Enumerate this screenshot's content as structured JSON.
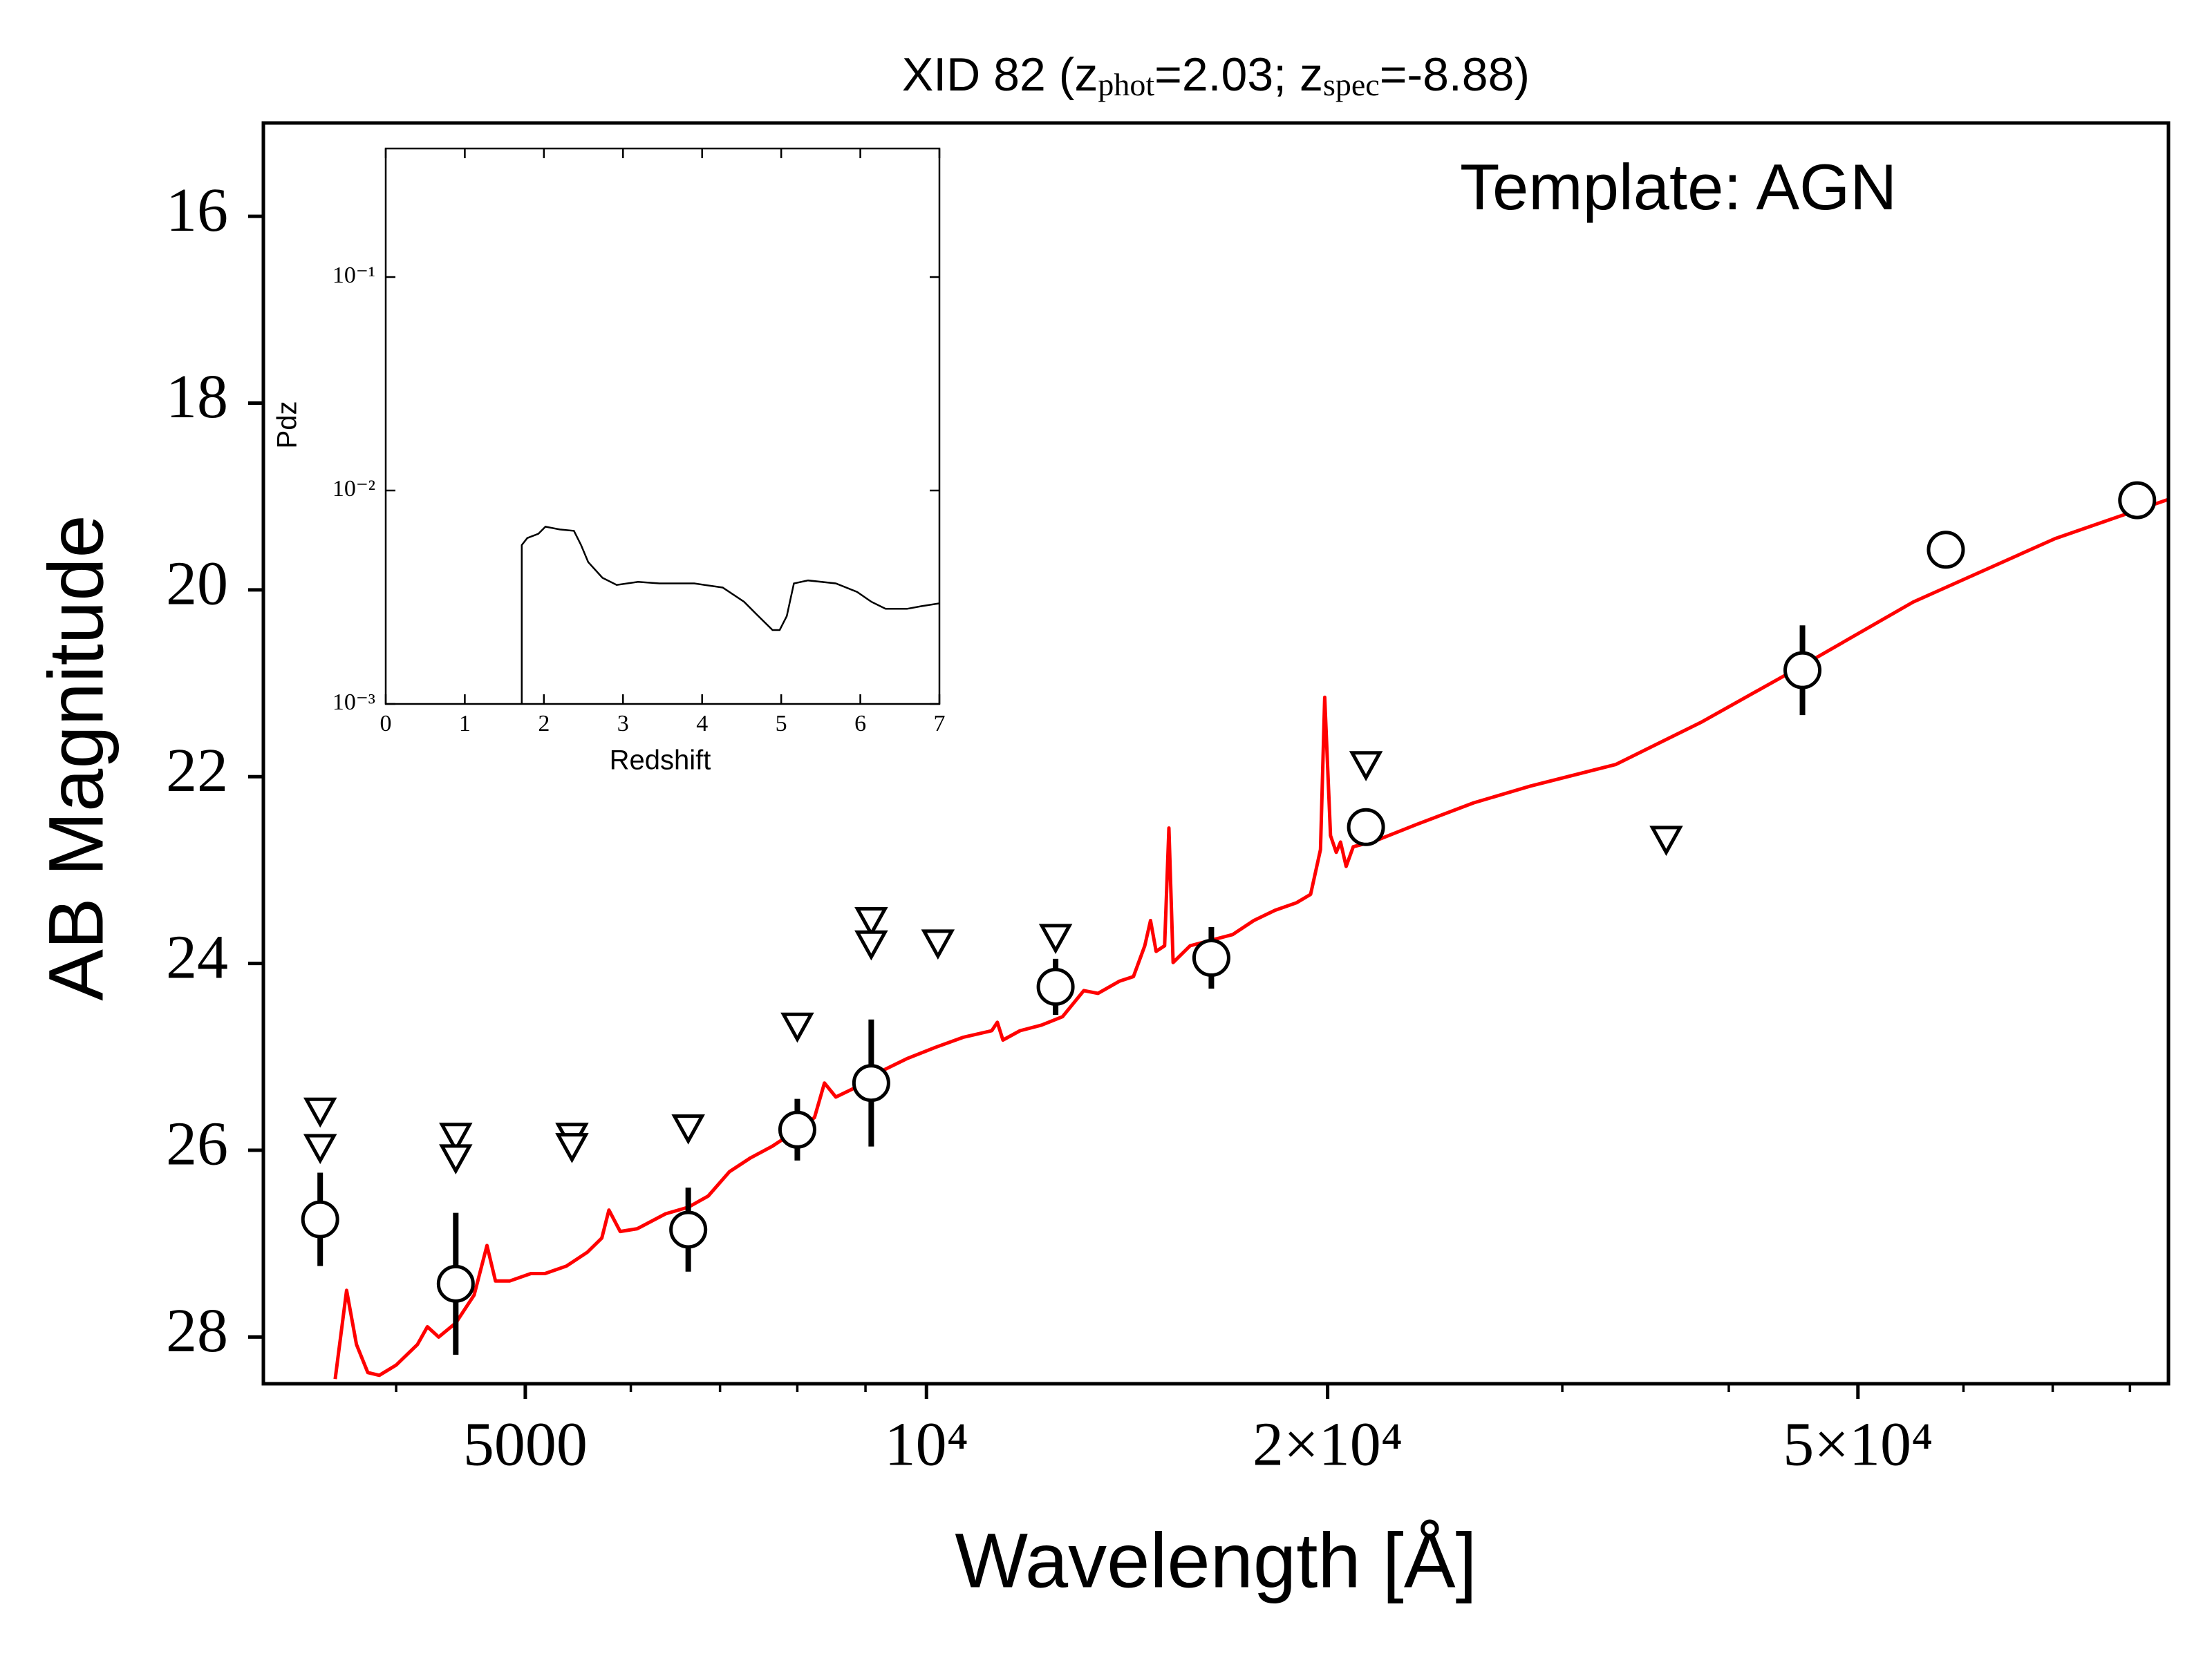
{
  "chart_data": [
    {
      "type": "scatter",
      "title": [
        "XID 82 (z",
        "phot",
        "=2.03; z",
        "spec",
        "=-8.88)"
      ],
      "annotation": "Template: AGN",
      "xlabel": "Wavelength [Å]",
      "ylabel": "AB Magnitude",
      "xlog": true,
      "xlim": [
        3180,
        85500
      ],
      "xticks": [
        5000,
        {
          "value": 10000,
          "label": "10⁴"
        },
        {
          "value": 20000,
          "label": "2×10⁴"
        },
        {
          "value": 50000,
          "label": "5×10⁴"
        }
      ],
      "xminorticks": [
        4000,
        6000,
        7000,
        8000,
        9000,
        30000,
        40000,
        60000,
        70000,
        80000
      ],
      "ylim": [
        28.5,
        15
      ],
      "yticks": [
        16,
        18,
        20,
        22,
        24,
        26,
        28
      ],
      "series": [
        {
          "marker": "line",
          "color": "#ff0000",
          "x": [
            3600,
            3672,
            3735,
            3809,
            3885,
            4000,
            4150,
            4222,
            4305,
            4434,
            4577,
            4680,
            4749,
            4866,
            5049,
            5173,
            5368,
            5568,
            5707,
            5777,
            5891,
            6067,
            6372,
            6626,
            6858,
            7114,
            7381,
            7656,
            7943,
            8241,
            8384,
            8551,
            8870,
            9201,
            9663,
            10148,
            10657,
            11194,
            11303,
            11413,
            11755,
            12196,
            12650,
            13124,
            13450,
            13953,
            14300,
            14583,
            14727,
            14870,
            15090,
            15202,
            15314,
            15771,
            16360,
            16973,
            17605,
            18265,
            18950,
            19420,
            19756,
            19900,
            20100,
            20300,
            20450,
            20650,
            20905,
            21690,
            23340,
            25740,
            28400,
            32890,
            38100,
            45430,
            55000,
            70300,
            85500
          ],
          "values": [
            28.45,
            27.5,
            28.08,
            28.38,
            28.41,
            28.3,
            28.08,
            27.89,
            28.0,
            27.85,
            27.55,
            27.02,
            27.4,
            27.4,
            27.32,
            27.32,
            27.24,
            27.09,
            26.94,
            26.64,
            26.87,
            26.84,
            26.68,
            26.61,
            26.49,
            26.23,
            26.08,
            25.96,
            25.81,
            25.65,
            25.28,
            25.43,
            25.32,
            25.17,
            25.02,
            24.9,
            24.79,
            24.72,
            24.63,
            24.82,
            24.72,
            24.66,
            24.57,
            24.29,
            24.32,
            24.19,
            24.14,
            23.81,
            23.54,
            23.87,
            23.81,
            22.55,
            23.99,
            23.81,
            23.75,
            23.69,
            23.54,
            23.43,
            23.35,
            23.26,
            22.78,
            21.15,
            22.63,
            22.81,
            22.7,
            22.96,
            22.75,
            22.69,
            22.51,
            22.28,
            22.1,
            21.87,
            21.42,
            20.81,
            20.13,
            19.45,
            19.03
          ]
        },
        {
          "marker": "circle",
          "color": "#000000",
          "x": [
            3508,
            4434,
            6626,
            8000,
            9090,
            12500,
            16360,
            21370,
            45430,
            58200,
            81000
          ],
          "values": [
            26.74,
            27.43,
            26.85,
            25.78,
            25.28,
            24.25,
            23.94,
            22.54,
            20.86,
            19.57,
            19.04
          ],
          "errors": [
            0.5,
            0.76,
            0.45,
            0.33,
            0.68,
            0.3,
            0.33,
            null,
            0.48,
            null,
            null
          ]
        },
        {
          "marker": "triangle-down",
          "color": "#000000",
          "x": [
            3508,
            3508,
            4434,
            4434,
            5420,
            5420,
            6626,
            8000,
            9090,
            9090,
            10200,
            12500,
            21370,
            35900
          ],
          "values": [
            25.58,
            25.97,
            25.85,
            26.08,
            25.85,
            25.96,
            25.76,
            24.67,
            23.54,
            23.79,
            23.78,
            23.72,
            21.87,
            22.67
          ]
        }
      ]
    },
    {
      "type": "line",
      "xlabel": "Redshift",
      "ylabel": "Pdz",
      "xlim": [
        0,
        7
      ],
      "xticks": [
        0,
        1,
        2,
        3,
        4,
        5,
        6,
        7
      ],
      "ylog": true,
      "ylim": [
        0.001,
        0.4
      ],
      "yticks": [
        {
          "value": 0.001,
          "label": "10⁻³"
        },
        {
          "value": 0.01,
          "label": "10⁻²"
        },
        {
          "value": 0.1,
          "label": "10⁻¹"
        }
      ],
      "series": [
        {
          "color": "#000000",
          "x": [
            1.72,
            1.72,
            1.79,
            1.93,
            2.02,
            2.2,
            2.38,
            2.47,
            2.56,
            2.74,
            2.92,
            3.19,
            3.46,
            3.9,
            4.26,
            4.53,
            4.71,
            4.89,
            4.98,
            5.07,
            5.16,
            5.34,
            5.69,
            5.96,
            6.14,
            6.32,
            6.59,
            6.77,
            7.0
          ],
          "values": [
            0.001,
            0.00555,
            0.00599,
            0.00627,
            0.00677,
            0.00657,
            0.00647,
            0.00555,
            0.00462,
            0.0039,
            0.00361,
            0.00373,
            0.00367,
            0.00367,
            0.00351,
            0.00301,
            0.00258,
            0.00222,
            0.00222,
            0.00258,
            0.00367,
            0.00379,
            0.00367,
            0.00335,
            0.00301,
            0.00279,
            0.00279,
            0.00287,
            0.00296
          ]
        }
      ]
    }
  ]
}
